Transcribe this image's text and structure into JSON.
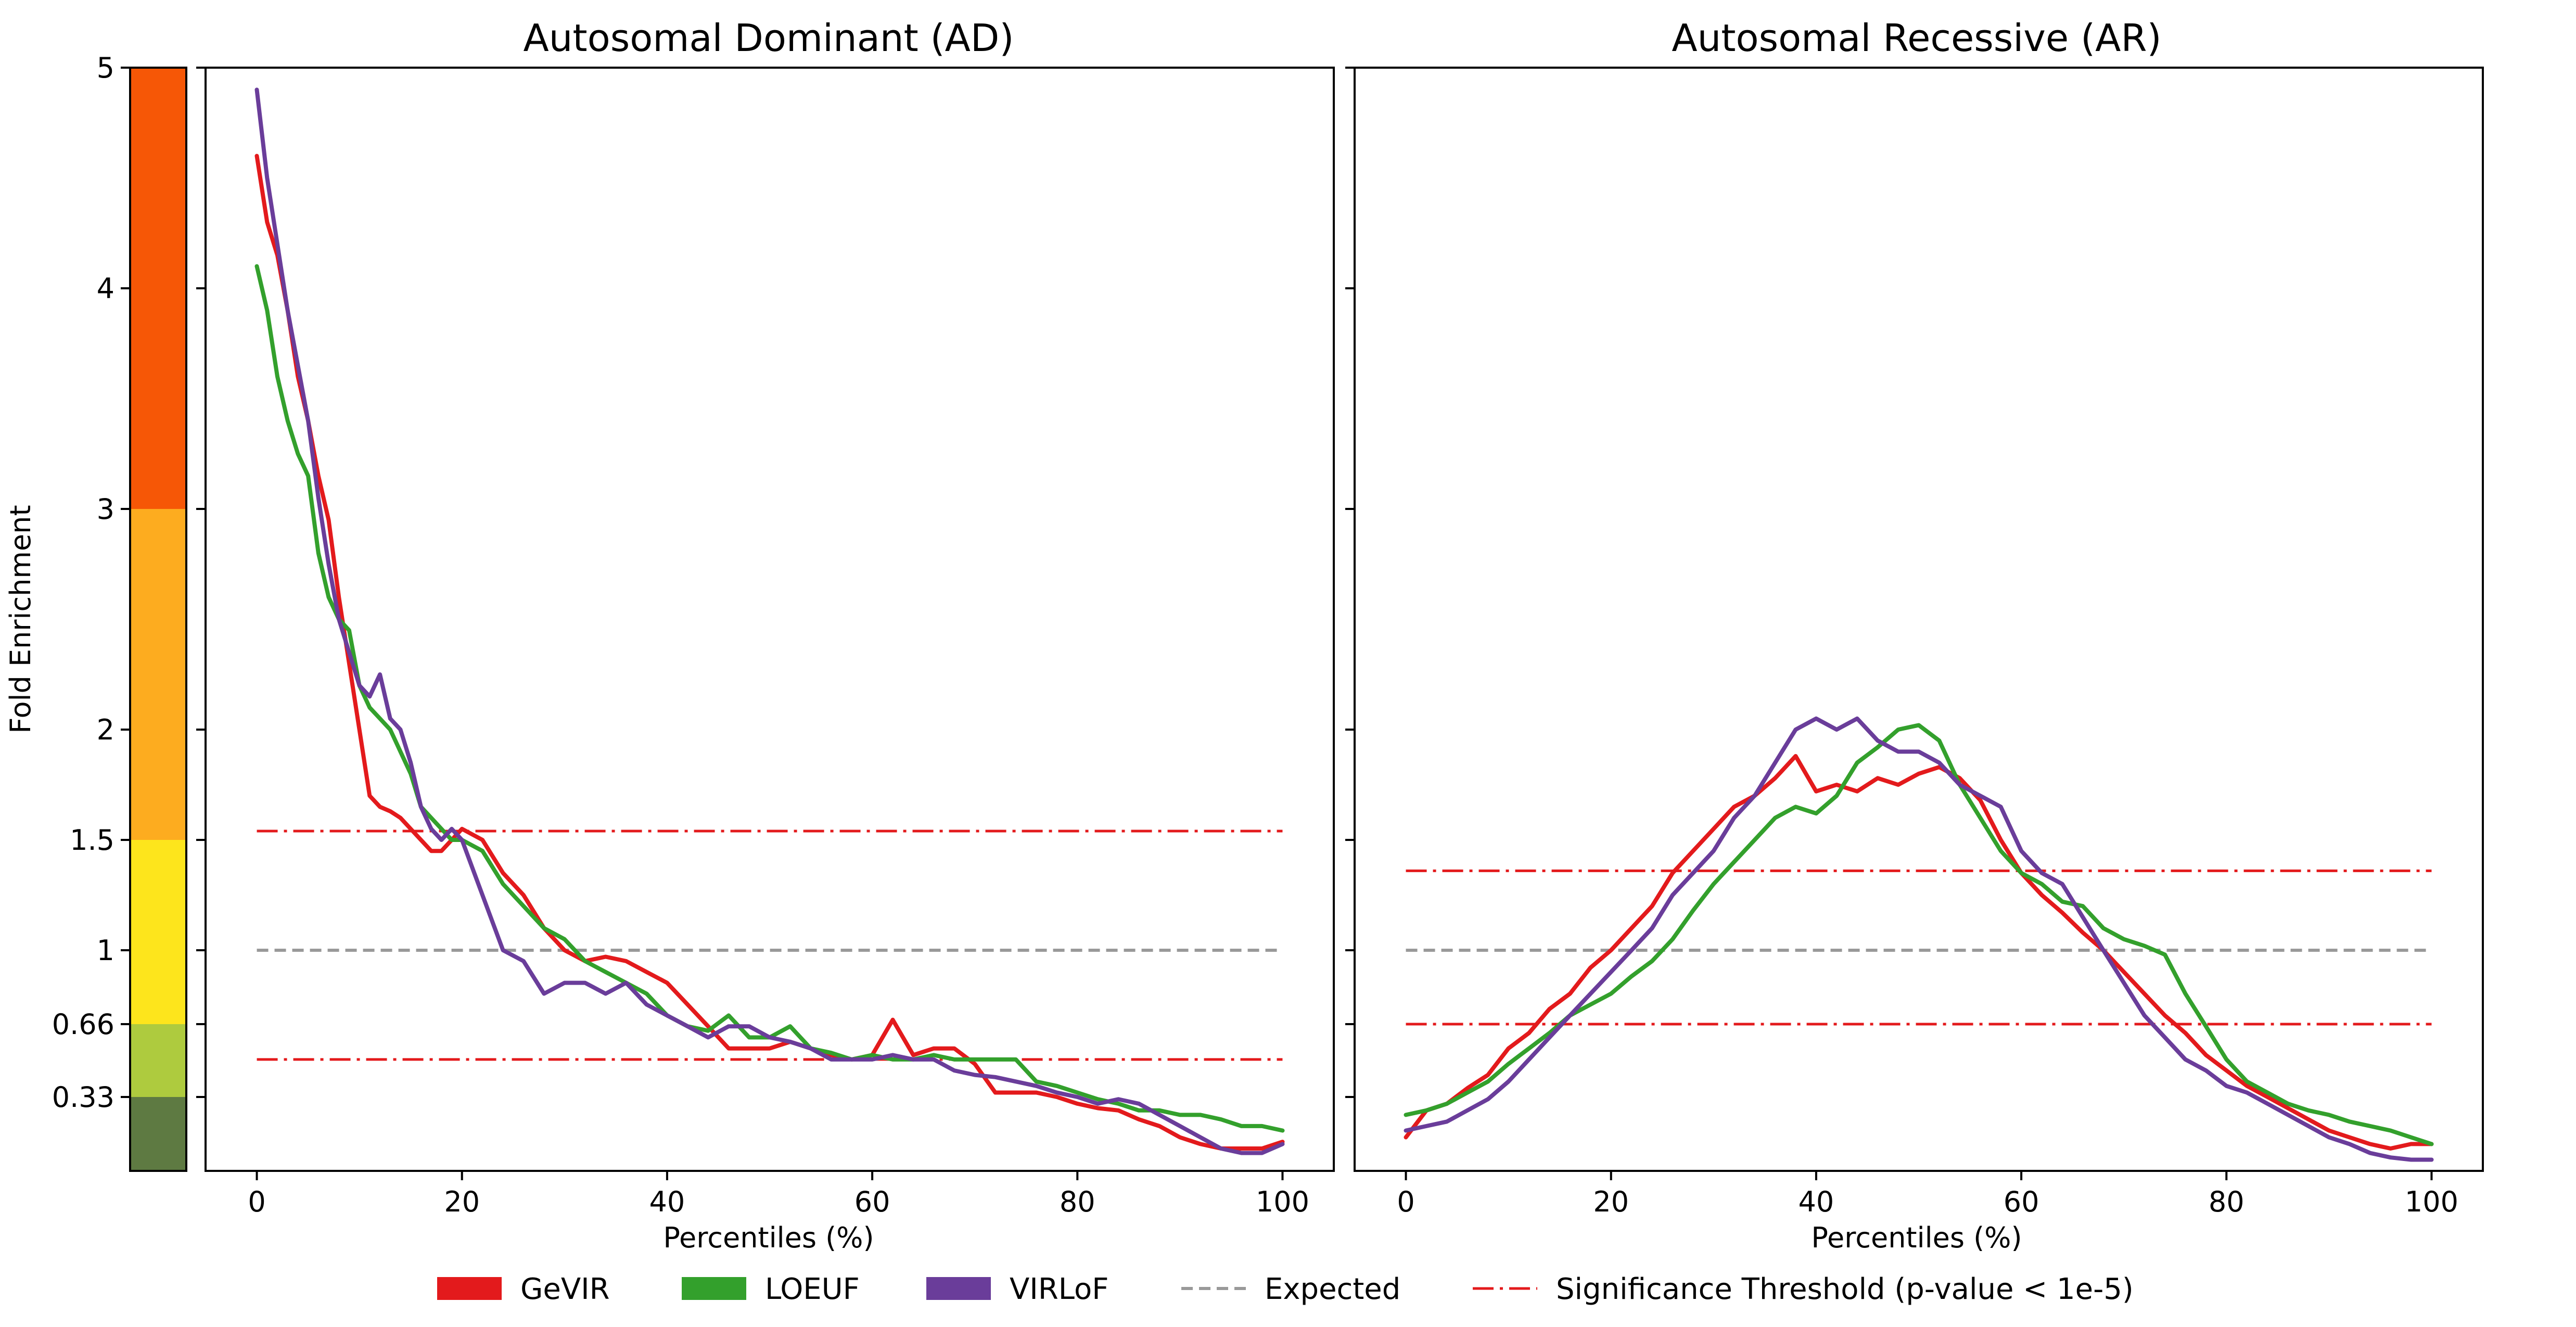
{
  "figure": {
    "y_axis_label": "Fold Enrichment",
    "y_ticks": [
      "5",
      "4",
      "3",
      "2",
      "1.5",
      "1",
      "0.66",
      "0.33"
    ],
    "x_ticks": [
      "0",
      "20",
      "40",
      "60",
      "80",
      "100"
    ]
  },
  "colorbar": {
    "bands": [
      {
        "from": 0.0,
        "to": 0.33,
        "color": "#5e7a42"
      },
      {
        "from": 0.33,
        "to": 0.66,
        "color": "#aecb3e"
      },
      {
        "from": 0.66,
        "to": 1.5,
        "color": "#fde51c"
      },
      {
        "from": 1.5,
        "to": 3.0,
        "color": "#fdac1f"
      },
      {
        "from": 3.0,
        "to": 5.0,
        "color": "#f65706"
      }
    ]
  },
  "legend": {
    "items": [
      {
        "label": "GeVIR",
        "kind": "patch",
        "color": "#e31a1c"
      },
      {
        "label": "LOEUF",
        "kind": "patch",
        "color": "#33a02c"
      },
      {
        "label": "VIRLoF",
        "kind": "patch",
        "color": "#6a3d9a"
      },
      {
        "label": "Expected",
        "kind": "dashed",
        "color": "#999999"
      },
      {
        "label": "Significance Threshold (p-value < 1e-5)",
        "kind": "dashdot",
        "color": "#e31a1c"
      }
    ]
  },
  "chart_data": [
    {
      "type": "line",
      "title": "Autosomal Dominant (AD)",
      "xlabel": "Percentiles (%)",
      "ylabel": "Fold Enrichment",
      "xlim": [
        -5,
        105
      ],
      "y_scale": "piecewise: 0-0.33-0.66-1-1.5-2-3-4-5",
      "ylim": [
        0,
        5
      ],
      "grid": false,
      "expected": 1,
      "thresholds": [
        1.54,
        0.5
      ],
      "series": [
        {
          "name": "GeVIR",
          "color": "#e31a1c",
          "x": [
            0,
            1,
            2,
            3,
            4,
            5,
            6,
            7,
            8,
            9,
            10,
            11,
            12,
            13,
            14,
            15,
            16,
            17,
            18,
            19,
            20,
            22,
            24,
            26,
            28,
            30,
            32,
            34,
            36,
            38,
            40,
            42,
            44,
            46,
            48,
            50,
            52,
            54,
            56,
            58,
            60,
            62,
            64,
            66,
            68,
            70,
            72,
            74,
            76,
            78,
            80,
            82,
            84,
            86,
            88,
            90,
            92,
            94,
            96,
            98,
            100
          ],
          "y": [
            4.6,
            4.3,
            4.15,
            3.9,
            3.6,
            3.4,
            3.15,
            2.95,
            2.6,
            2.3,
            2.0,
            1.7,
            1.65,
            1.63,
            1.6,
            1.55,
            1.5,
            1.45,
            1.45,
            1.5,
            1.55,
            1.5,
            1.35,
            1.25,
            1.1,
            1.0,
            0.95,
            0.97,
            0.95,
            0.9,
            0.85,
            0.75,
            0.65,
            0.55,
            0.55,
            0.55,
            0.58,
            0.55,
            0.52,
            0.5,
            0.52,
            0.68,
            0.52,
            0.55,
            0.55,
            0.48,
            0.35,
            0.35,
            0.35,
            0.33,
            0.3,
            0.28,
            0.27,
            0.23,
            0.2,
            0.15,
            0.12,
            0.1,
            0.1,
            0.1,
            0.13
          ]
        },
        {
          "name": "LOEUF",
          "color": "#33a02c",
          "x": [
            0,
            1,
            2,
            3,
            4,
            5,
            6,
            7,
            8,
            9,
            10,
            11,
            12,
            13,
            14,
            15,
            16,
            17,
            18,
            19,
            20,
            22,
            24,
            26,
            28,
            30,
            32,
            34,
            36,
            38,
            40,
            42,
            44,
            46,
            48,
            50,
            52,
            54,
            56,
            58,
            60,
            62,
            64,
            66,
            68,
            70,
            72,
            74,
            76,
            78,
            80,
            82,
            84,
            86,
            88,
            90,
            92,
            94,
            96,
            98,
            100
          ],
          "y": [
            4.1,
            3.9,
            3.6,
            3.4,
            3.25,
            3.15,
            2.8,
            2.6,
            2.5,
            2.45,
            2.2,
            2.1,
            2.05,
            2.0,
            1.9,
            1.8,
            1.65,
            1.6,
            1.55,
            1.5,
            1.5,
            1.45,
            1.3,
            1.2,
            1.1,
            1.05,
            0.95,
            0.9,
            0.85,
            0.8,
            0.7,
            0.65,
            0.63,
            0.7,
            0.6,
            0.6,
            0.65,
            0.55,
            0.53,
            0.5,
            0.52,
            0.5,
            0.5,
            0.52,
            0.5,
            0.5,
            0.5,
            0.5,
            0.4,
            0.38,
            0.35,
            0.32,
            0.3,
            0.27,
            0.27,
            0.25,
            0.25,
            0.23,
            0.2,
            0.2,
            0.18
          ]
        },
        {
          "name": "VIRLoF",
          "color": "#6a3d9a",
          "x": [
            0,
            1,
            2,
            3,
            4,
            5,
            6,
            7,
            8,
            9,
            10,
            11,
            12,
            13,
            14,
            15,
            16,
            17,
            18,
            19,
            20,
            22,
            24,
            26,
            28,
            30,
            32,
            34,
            36,
            38,
            40,
            42,
            44,
            46,
            48,
            50,
            52,
            54,
            56,
            58,
            60,
            62,
            64,
            66,
            68,
            70,
            72,
            74,
            76,
            78,
            80,
            82,
            84,
            86,
            88,
            90,
            92,
            94,
            96,
            98,
            100
          ],
          "y": [
            4.9,
            4.5,
            4.2,
            3.9,
            3.65,
            3.4,
            3.05,
            2.75,
            2.5,
            2.35,
            2.2,
            2.15,
            2.25,
            2.05,
            2.0,
            1.85,
            1.65,
            1.55,
            1.5,
            1.55,
            1.5,
            1.25,
            1.0,
            0.95,
            0.8,
            0.85,
            0.85,
            0.8,
            0.85,
            0.75,
            0.7,
            0.65,
            0.6,
            0.65,
            0.65,
            0.6,
            0.58,
            0.55,
            0.5,
            0.5,
            0.5,
            0.52,
            0.5,
            0.5,
            0.45,
            0.43,
            0.42,
            0.4,
            0.38,
            0.35,
            0.33,
            0.3,
            0.32,
            0.3,
            0.25,
            0.2,
            0.15,
            0.1,
            0.08,
            0.08,
            0.12
          ]
        }
      ]
    },
    {
      "type": "line",
      "title": "Autosomal Recessive (AR)",
      "xlabel": "Percentiles (%)",
      "ylabel": "",
      "xlim": [
        -5,
        105
      ],
      "y_scale": "piecewise: 0-0.33-0.66-1-1.5-2-3-4-5",
      "ylim": [
        0,
        5
      ],
      "grid": false,
      "expected": 1,
      "thresholds": [
        1.36,
        0.66
      ],
      "series": [
        {
          "name": "GeVIR",
          "color": "#e31a1c",
          "x": [
            0,
            2,
            4,
            6,
            8,
            10,
            12,
            14,
            16,
            18,
            20,
            22,
            24,
            26,
            28,
            30,
            32,
            34,
            36,
            38,
            40,
            42,
            44,
            46,
            48,
            50,
            52,
            54,
            56,
            58,
            60,
            62,
            64,
            66,
            68,
            70,
            72,
            74,
            76,
            78,
            80,
            82,
            84,
            86,
            88,
            90,
            92,
            94,
            96,
            98,
            100
          ],
          "y": [
            0.15,
            0.27,
            0.3,
            0.37,
            0.43,
            0.55,
            0.62,
            0.73,
            0.8,
            0.92,
            1.0,
            1.1,
            1.2,
            1.35,
            1.45,
            1.55,
            1.65,
            1.7,
            1.78,
            1.88,
            1.72,
            1.75,
            1.72,
            1.78,
            1.75,
            1.8,
            1.83,
            1.78,
            1.68,
            1.5,
            1.35,
            1.25,
            1.17,
            1.08,
            1.0,
            0.9,
            0.8,
            0.7,
            0.62,
            0.52,
            0.45,
            0.38,
            0.33,
            0.28,
            0.23,
            0.18,
            0.15,
            0.12,
            0.1,
            0.12,
            0.12
          ]
        },
        {
          "name": "LOEUF",
          "color": "#33a02c",
          "x": [
            0,
            2,
            4,
            6,
            8,
            10,
            12,
            14,
            16,
            18,
            20,
            22,
            24,
            26,
            28,
            30,
            32,
            34,
            36,
            38,
            40,
            42,
            44,
            46,
            48,
            50,
            52,
            54,
            56,
            58,
            60,
            62,
            64,
            66,
            68,
            70,
            72,
            74,
            76,
            78,
            80,
            82,
            84,
            86,
            88,
            90,
            92,
            94,
            96,
            98,
            100
          ],
          "y": [
            0.25,
            0.27,
            0.3,
            0.35,
            0.4,
            0.48,
            0.55,
            0.62,
            0.7,
            0.75,
            0.8,
            0.88,
            0.95,
            1.05,
            1.18,
            1.3,
            1.4,
            1.5,
            1.6,
            1.65,
            1.62,
            1.7,
            1.85,
            1.92,
            2.0,
            2.02,
            1.95,
            1.75,
            1.6,
            1.45,
            1.35,
            1.3,
            1.22,
            1.2,
            1.1,
            1.05,
            1.02,
            0.98,
            0.8,
            0.65,
            0.5,
            0.4,
            0.35,
            0.3,
            0.27,
            0.25,
            0.22,
            0.2,
            0.18,
            0.15,
            0.12
          ]
        },
        {
          "name": "VIRLoF",
          "color": "#6a3d9a",
          "x": [
            0,
            2,
            4,
            6,
            8,
            10,
            12,
            14,
            16,
            18,
            20,
            22,
            24,
            26,
            28,
            30,
            32,
            34,
            36,
            38,
            40,
            42,
            44,
            46,
            48,
            50,
            52,
            54,
            56,
            58,
            60,
            62,
            64,
            66,
            68,
            70,
            72,
            74,
            76,
            78,
            80,
            82,
            84,
            86,
            88,
            90,
            92,
            94,
            96,
            98,
            100
          ],
          "y": [
            0.18,
            0.2,
            0.22,
            0.27,
            0.32,
            0.4,
            0.5,
            0.6,
            0.7,
            0.8,
            0.9,
            1.0,
            1.1,
            1.25,
            1.35,
            1.45,
            1.6,
            1.7,
            1.85,
            2.0,
            2.05,
            2.0,
            2.05,
            1.95,
            1.9,
            1.9,
            1.85,
            1.75,
            1.7,
            1.65,
            1.45,
            1.35,
            1.3,
            1.15,
            1.0,
            0.85,
            0.7,
            0.6,
            0.5,
            0.45,
            0.38,
            0.35,
            0.3,
            0.25,
            0.2,
            0.15,
            0.12,
            0.08,
            0.06,
            0.05,
            0.05
          ]
        }
      ]
    }
  ]
}
